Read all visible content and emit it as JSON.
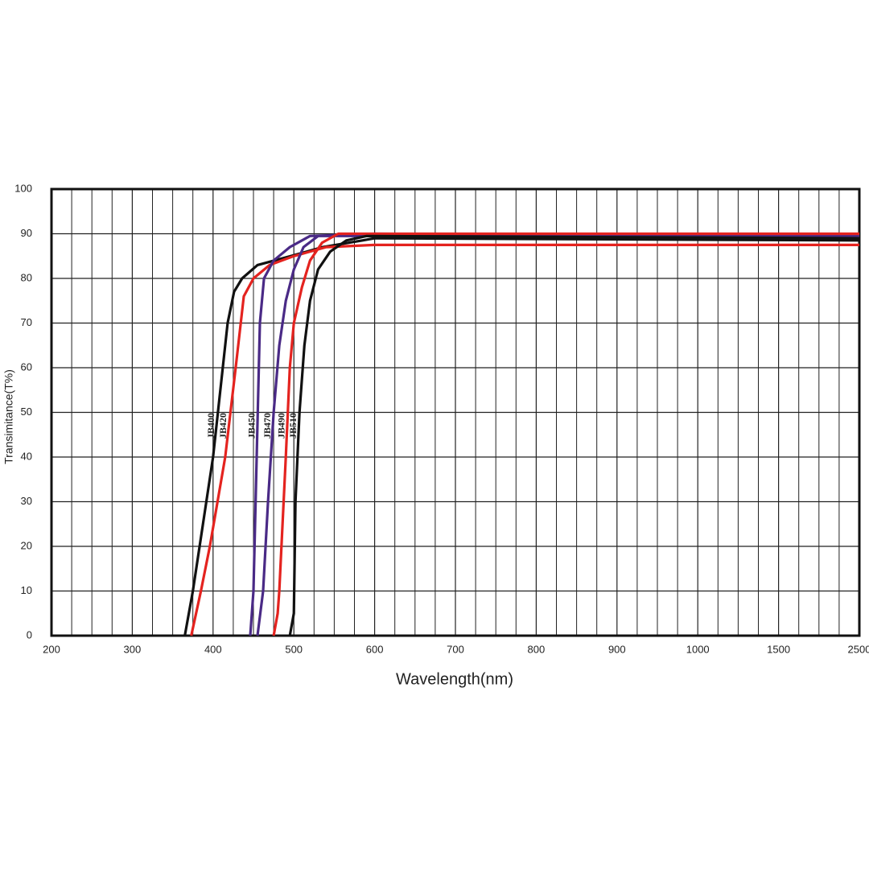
{
  "chart_data": {
    "type": "line",
    "xlabel": "Wavelength(nm)",
    "ylabel": "Transimitance(T%)",
    "xscale": "segmented",
    "xlim": [
      200,
      2500
    ],
    "xticks": [
      200,
      300,
      400,
      500,
      600,
      700,
      800,
      900,
      1000,
      1500,
      2500
    ],
    "ylim": [
      0,
      100
    ],
    "yticks": [
      0,
      10,
      20,
      30,
      40,
      50,
      60,
      70,
      80,
      90,
      100
    ],
    "grid": true,
    "series": [
      {
        "name": "JB400",
        "color": "#111111",
        "x": [
          365,
          375,
          400,
          418,
          426,
          436,
          455,
          496,
          536,
          585,
          600,
          2500
        ],
        "values": [
          0,
          10,
          40,
          70,
          77,
          80,
          83,
          85,
          87,
          88.5,
          89,
          88.5
        ]
      },
      {
        "name": "JB420",
        "color": "#e4231f",
        "x": [
          373,
          385,
          396,
          415,
          428,
          438,
          450,
          470,
          500,
          540,
          600,
          2500
        ],
        "values": [
          0,
          10,
          20,
          40,
          60,
          76,
          80,
          83,
          85,
          87,
          87.5,
          87.5
        ]
      },
      {
        "name": "JB450",
        "color": "#4a2a86",
        "x": [
          446,
          450,
          454,
          458,
          463,
          475,
          495,
          520,
          600,
          2500
        ],
        "values": [
          0,
          10,
          40,
          70,
          80,
          84,
          87,
          89.5,
          90,
          89.5
        ]
      },
      {
        "name": "JB470",
        "color": "#4a2a86",
        "x": [
          455,
          462,
          468,
          475,
          482,
          490,
          500,
          512,
          530,
          2500
        ],
        "values": [
          0,
          10,
          30,
          50,
          65,
          75,
          82,
          87,
          89.5,
          89.5
        ]
      },
      {
        "name": "JB490",
        "color": "#e4231f",
        "x": [
          475,
          480,
          482,
          490,
          495,
          500,
          510,
          520,
          535,
          555,
          2500
        ],
        "values": [
          0,
          5,
          10,
          40,
          60,
          70,
          78,
          84,
          88,
          90,
          90
        ]
      },
      {
        "name": "JB510",
        "color": "#111111",
        "x": [
          495,
          500,
          502,
          507,
          513,
          520,
          530,
          545,
          565,
          590,
          2500
        ],
        "values": [
          0,
          5,
          30,
          50,
          65,
          75,
          82,
          86,
          88.5,
          89.5,
          89
        ]
      }
    ]
  }
}
